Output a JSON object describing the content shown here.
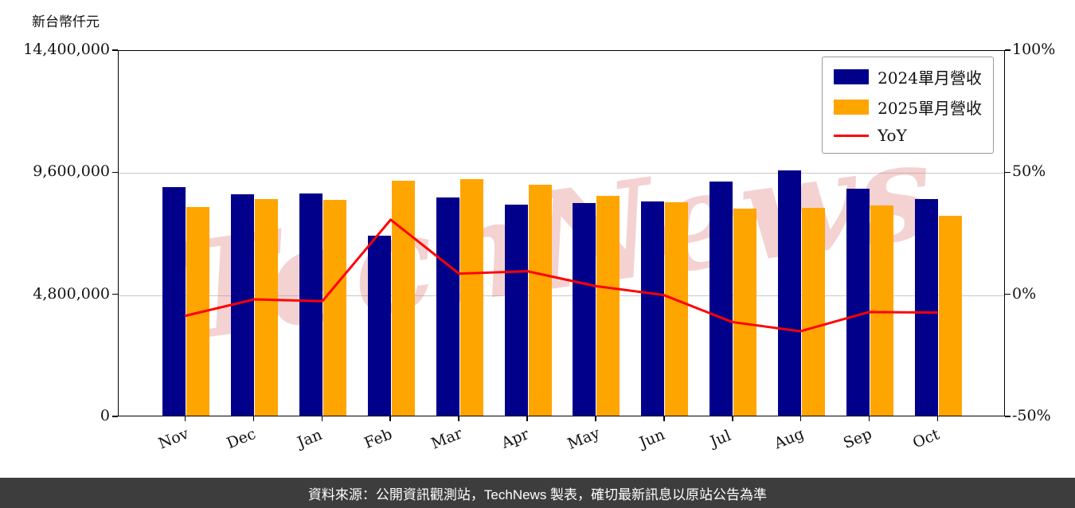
{
  "watermark": "TechNews",
  "footer": {
    "text": "資料來源：公開資訊觀測站，TechNews 製表，確切最新訊息以原站公告為準"
  },
  "chart_data": {
    "type": "bar+line",
    "title": "",
    "categories": [
      "Nov",
      "Dec",
      "Jan",
      "Feb",
      "Mar",
      "Apr",
      "May",
      "Jun",
      "Jul",
      "Aug",
      "Sep",
      "Oct"
    ],
    "series": [
      {
        "name": "2024單月營收",
        "type": "bar",
        "axis": "left",
        "color": "#00008B",
        "values": [
          8980000,
          8700000,
          8730000,
          7070000,
          8580000,
          8300000,
          8360000,
          8420000,
          9200000,
          9650000,
          8920000,
          8510000
        ]
      },
      {
        "name": "2025單月營收",
        "type": "bar",
        "axis": "left",
        "color": "#FFA500",
        "values": [
          8200000,
          8510000,
          8480000,
          9230000,
          9300000,
          9080000,
          8640000,
          8390000,
          8140000,
          8170000,
          8260000,
          7860000
        ]
      },
      {
        "name": "YoY",
        "type": "line",
        "axis": "right",
        "color": "#FF0000",
        "values": [
          -8.9,
          -2.2,
          -2.9,
          30.6,
          8.4,
          9.4,
          3.3,
          -0.4,
          -11.5,
          -15.3,
          -7.4,
          -7.6
        ]
      }
    ],
    "left_axis": {
      "label": "新台幣仟元",
      "min": 0,
      "max": 14400000,
      "ticks": [
        0,
        4800000,
        9600000,
        14400000
      ],
      "tick_labels": [
        "0",
        "4,800,000",
        "9,600,000",
        "14,400,000"
      ]
    },
    "right_axis": {
      "label": "",
      "min": -50,
      "max": 100,
      "ticks": [
        -50,
        0,
        50,
        100
      ],
      "tick_labels": [
        "-50%",
        "0%",
        "50%",
        "100%"
      ]
    },
    "grid": "horizontal",
    "legend_position": "top-right"
  }
}
